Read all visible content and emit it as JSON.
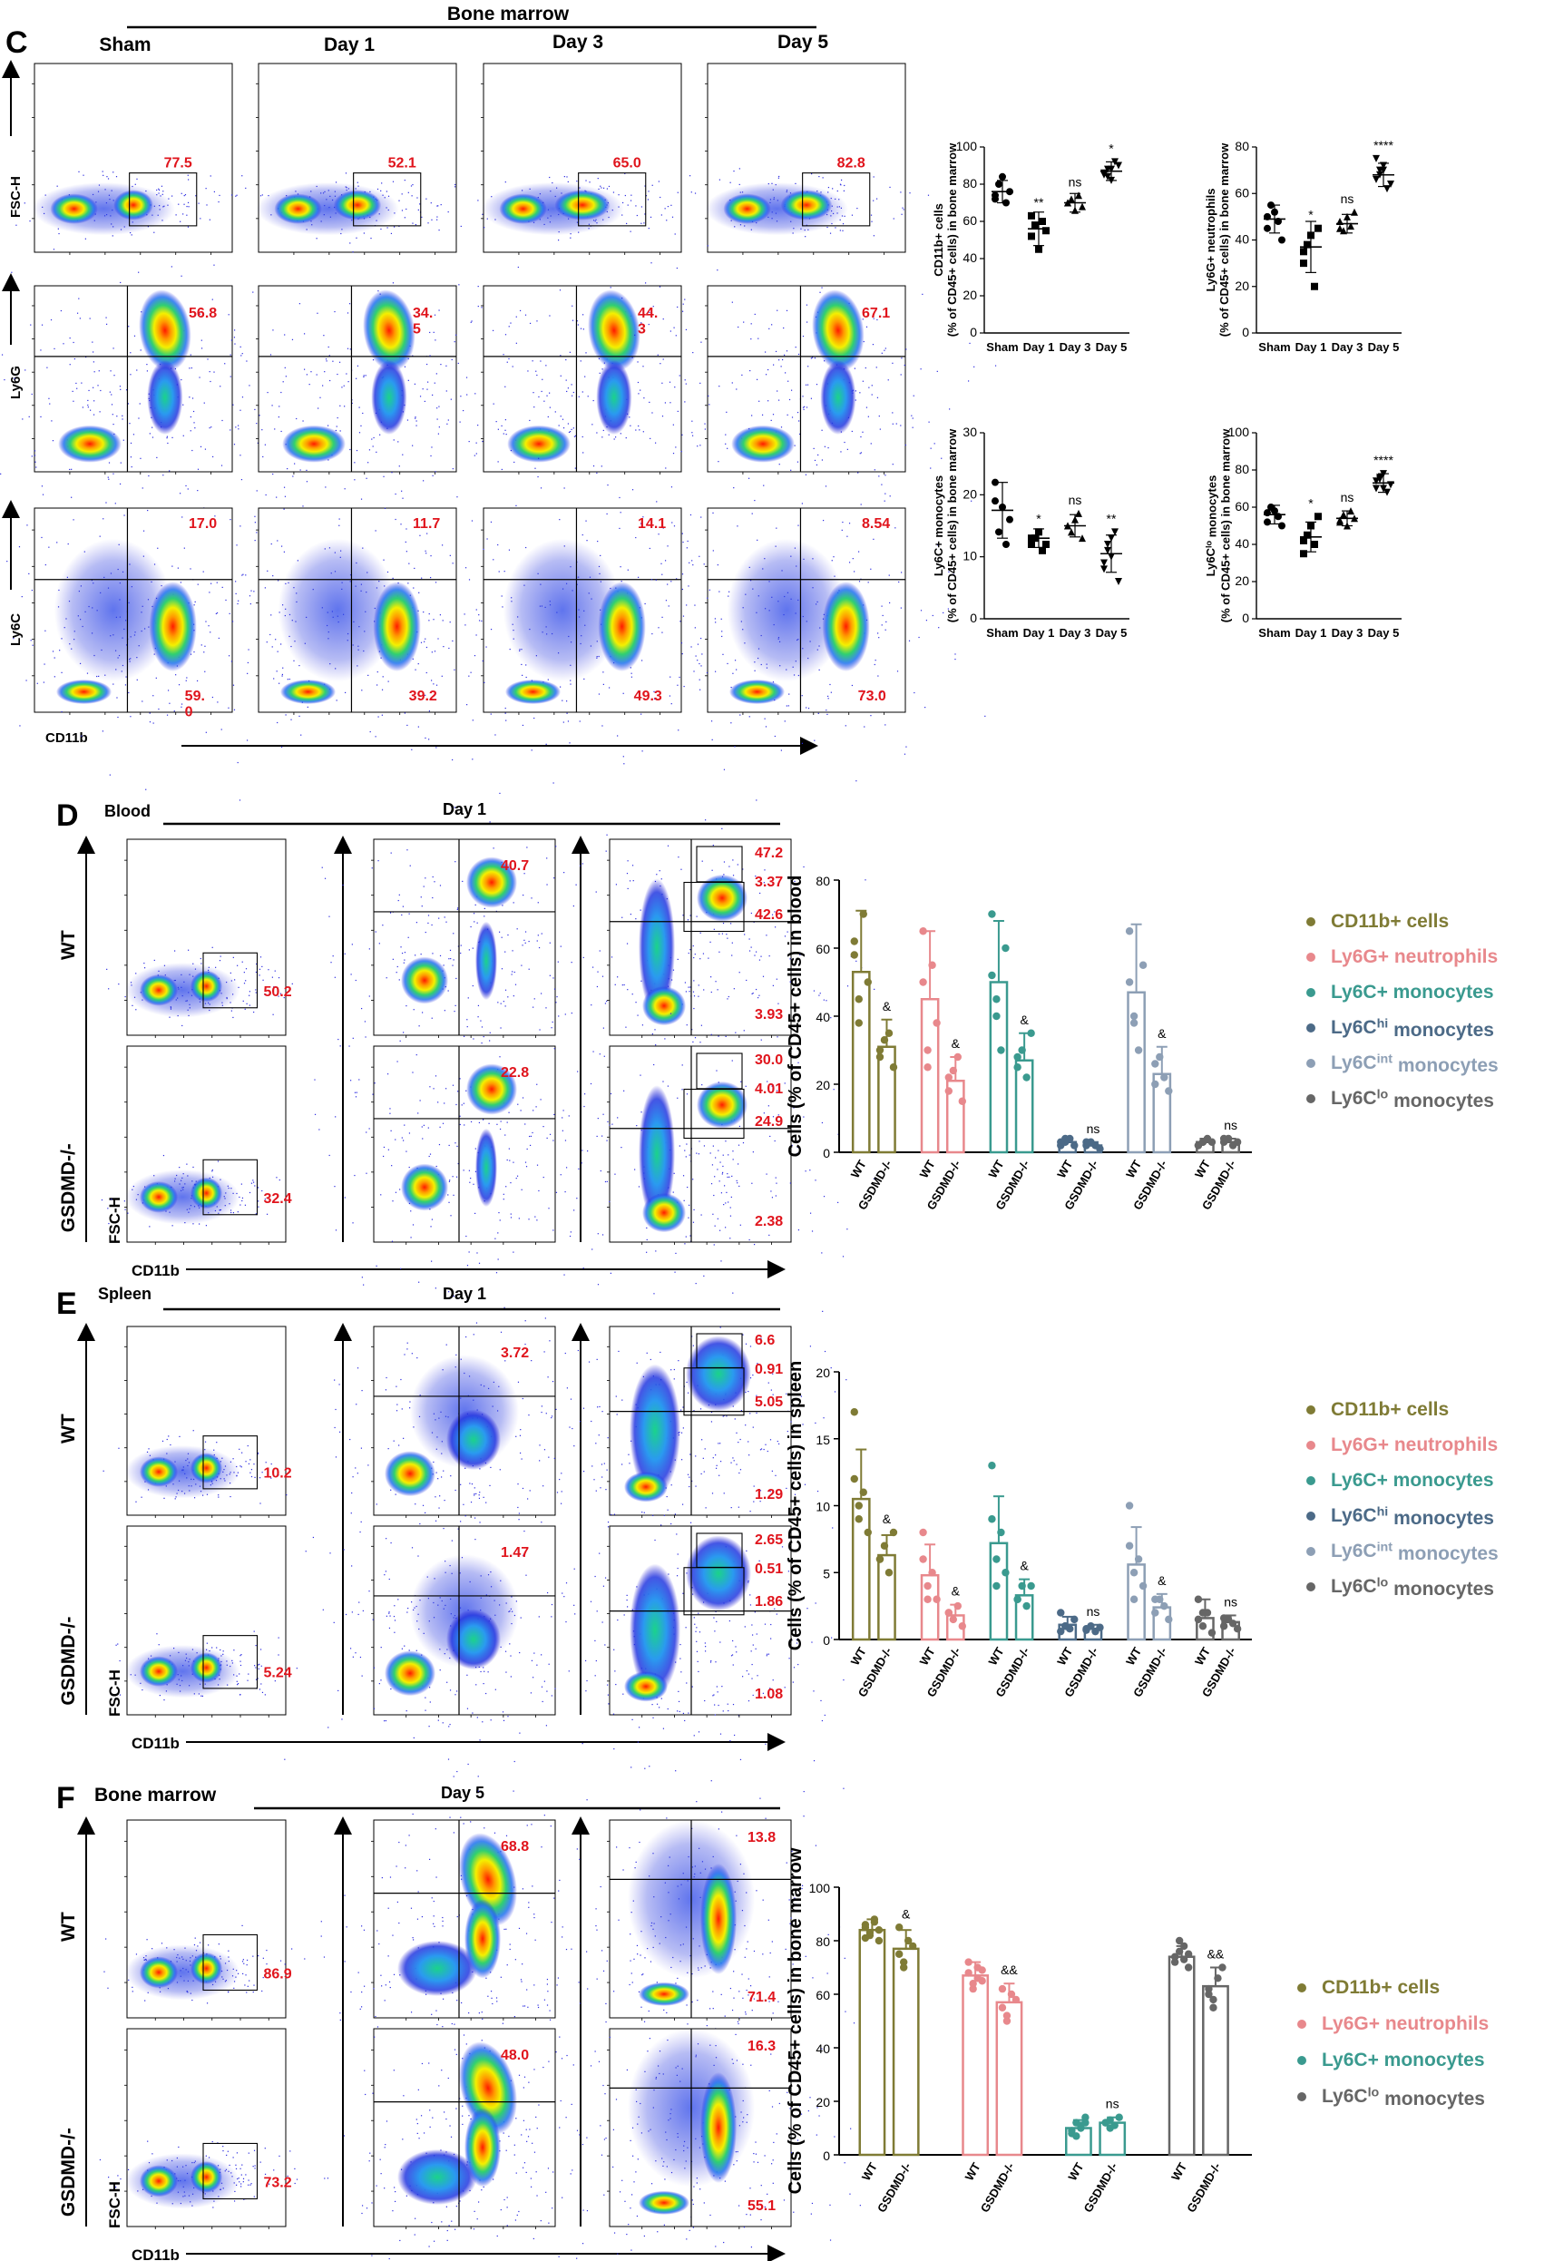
{
  "panel_C": {
    "letter": "C",
    "group": "Bone marrow",
    "timepoints": [
      "Sham",
      "Day 1",
      "Day 3",
      "Day 5"
    ],
    "row_labels": [
      "FSC-H",
      "Ly6G",
      "Ly6C"
    ],
    "x_label": "CD11b",
    "row1_values": [
      "77.5",
      "52.1",
      "65.0",
      "82.8"
    ],
    "row2_values": [
      "56.8",
      "34.\n5",
      "44.\n3",
      "67.1"
    ],
    "row3_top": [
      "17.0",
      "11.7",
      "14.1",
      "8.54"
    ],
    "row3_bottom": [
      "59.\n0",
      "39.2",
      "49.3",
      "73.0"
    ]
  },
  "panel_D": {
    "letter": "D",
    "tissue": "Blood",
    "day": "Day 1",
    "genotypes": [
      "WT",
      "GSDMD-/-"
    ],
    "axis_labels": [
      "FSC-H",
      "Ly6G",
      "Ly6C",
      "CD11b"
    ],
    "wt_values": [
      "50.2",
      "40.7",
      "47.2",
      "3.37",
      "42.6",
      "3.93"
    ],
    "ko_values": [
      "32.4",
      "22.8",
      "30.0",
      "4.01",
      "24.9",
      "2.38"
    ]
  },
  "panel_E": {
    "letter": "E",
    "tissue": "Spleen",
    "day": "Day 1",
    "genotypes": [
      "WT",
      "GSDMD-/-"
    ],
    "axis_labels": [
      "FSC-H",
      "Ly6G",
      "Ly6C",
      "CD11b"
    ],
    "wt_values": [
      "10.2",
      "3.72",
      "6.6",
      "0.91",
      "5.05",
      "1.29"
    ],
    "ko_values": [
      "5.24",
      "1.47",
      "2.65",
      "0.51",
      "1.86",
      "1.08"
    ]
  },
  "panel_F": {
    "letter": "F",
    "tissue": "Bone marrow",
    "day": "Day 5",
    "genotypes": [
      "WT",
      "GSDMD-/-"
    ],
    "axis_labels": [
      "FSC-H",
      "Ly6G",
      "Ly6C",
      "CD11b"
    ],
    "wt_values": [
      "86.9",
      "68.8",
      "13.8",
      "71.4"
    ],
    "ko_values": [
      "73.2",
      "48.0",
      "16.3",
      "55.1"
    ]
  },
  "colors": {
    "cd11b": "#7f7b35",
    "ly6g": "#e8888c",
    "ly6c": "#3a9a8f",
    "ly6chi": "#4c6a87",
    "ly6cint": "#8d9fb5",
    "ly6clo": "#666666",
    "red_text": "#e0141c"
  },
  "chart_data": [
    {
      "id": "C1",
      "type": "scatter",
      "ylabel": "CD11b+ cells\n(% of CD45+ cells) in bone marrow",
      "categories": [
        "Sham",
        "Day 1",
        "Day 3",
        "Day 5"
      ],
      "ylim": [
        0,
        100
      ],
      "yticks": [
        0,
        20,
        40,
        60,
        80,
        100
      ],
      "means": [
        76,
        56,
        70,
        87
      ],
      "sd": [
        6,
        9,
        5,
        5
      ],
      "points": [
        [
          72,
          80,
          84,
          70,
          76,
          74
        ],
        [
          52,
          58,
          45,
          60,
          55,
          63
        ],
        [
          70,
          72,
          66,
          74,
          68,
          70
        ],
        [
          86,
          88,
          82,
          92,
          90,
          85,
          84,
          88
        ]
      ],
      "markers": [
        "circle",
        "square",
        "triangle-up",
        "triangle-down"
      ],
      "significance": [
        "",
        "**",
        "ns",
        "*"
      ]
    },
    {
      "id": "C2",
      "type": "scatter",
      "ylabel": "Ly6G+ neutrophils\n(% of CD45+ cells) in bone marrow",
      "categories": [
        "Sham",
        "Day 1",
        "Day 3",
        "Day 5"
      ],
      "ylim": [
        0,
        80
      ],
      "yticks": [
        0,
        20,
        40,
        60,
        80
      ],
      "means": [
        49,
        37,
        47,
        68
      ],
      "sd": [
        6,
        11,
        4,
        5
      ],
      "points": [
        [
          45,
          55,
          52,
          48,
          40,
          50
        ],
        [
          30,
          38,
          42,
          20,
          45,
          35
        ],
        [
          48,
          44,
          50,
          46,
          52,
          45
        ],
        [
          66,
          70,
          72,
          62,
          64,
          75,
          68,
          70
        ]
      ],
      "markers": [
        "circle",
        "square",
        "triangle-up",
        "triangle-down"
      ],
      "significance": [
        "",
        "*",
        "ns",
        "****"
      ]
    },
    {
      "id": "C3",
      "type": "scatter",
      "ylabel": "Ly6C+ monocytes\n(% of CD45+ cells) in bone marrow",
      "categories": [
        "Sham",
        "Day 1",
        "Day 3",
        "Day 5"
      ],
      "ylim": [
        0,
        30
      ],
      "yticks": [
        0,
        10,
        20,
        30
      ],
      "means": [
        17.5,
        13,
        15,
        10.5
      ],
      "sd": [
        4.5,
        1.5,
        1.8,
        3
      ],
      "points": [
        [
          22,
          14,
          18,
          12,
          16,
          19
        ],
        [
          12,
          13,
          14,
          11,
          12,
          13
        ],
        [
          15,
          14,
          16,
          17,
          13,
          15
        ],
        [
          8,
          12,
          10,
          14,
          6,
          9,
          11,
          13
        ]
      ],
      "markers": [
        "circle",
        "square",
        "triangle-up",
        "triangle-down"
      ],
      "significance": [
        "",
        "*",
        "ns",
        "**"
      ]
    },
    {
      "id": "C4",
      "type": "scatter",
      "ylabel": "Ly6C^lo monocytes\n(% of CD45+ cells) in bone marrow",
      "categories": [
        "Sham",
        "Day 1",
        "Day 3",
        "Day 5"
      ],
      "ylim": [
        0,
        100
      ],
      "yticks": [
        0,
        20,
        40,
        60,
        80,
        100
      ],
      "means": [
        56,
        44,
        54,
        73
      ],
      "sd": [
        5,
        8,
        4,
        5
      ],
      "points": [
        [
          52,
          60,
          58,
          55,
          50,
          57
        ],
        [
          35,
          45,
          50,
          40,
          55,
          42
        ],
        [
          52,
          56,
          50,
          58,
          54,
          53
        ],
        [
          70,
          75,
          78,
          68,
          72,
          74,
          76,
          70
        ]
      ],
      "markers": [
        "circle",
        "square",
        "triangle-up",
        "triangle-down"
      ],
      "significance": [
        "",
        "*",
        "ns",
        "****"
      ]
    },
    {
      "id": "D",
      "type": "bar",
      "ylabel": "Cells (% of CD45+ cells) in blood",
      "genotypes": [
        "WT",
        "GSDMD-/-"
      ],
      "ylim": [
        0,
        80
      ],
      "yticks": [
        0,
        20,
        40,
        60,
        80
      ],
      "series": [
        {
          "name": "CD11b+ cells",
          "wt": 53,
          "ko": 31,
          "wt_sd": 18,
          "ko_sd": 8,
          "wt_pts": [
            62,
            45,
            70,
            50,
            58,
            38
          ],
          "ko_pts": [
            28,
            33,
            35,
            25,
            30
          ],
          "sig": "&"
        },
        {
          "name": "Ly6G+ neutrophils",
          "wt": 45,
          "ko": 21,
          "wt_sd": 20,
          "ko_sd": 7,
          "wt_pts": [
            65,
            30,
            55,
            38,
            50,
            25
          ],
          "ko_pts": [
            18,
            24,
            28,
            15,
            22
          ],
          "sig": "&"
        },
        {
          "name": "Ly6C+ monocytes",
          "wt": 50,
          "ko": 27,
          "wt_sd": 18,
          "ko_sd": 8,
          "wt_pts": [
            70,
            45,
            30,
            60,
            52,
            40
          ],
          "ko_pts": [
            25,
            30,
            22,
            35,
            28
          ],
          "sig": "&"
        },
        {
          "name": "Ly6C^hi monocytes",
          "wt": 3,
          "ko": 2,
          "wt_sd": 1,
          "ko_sd": 1,
          "wt_pts": [
            2,
            3,
            4,
            2,
            3,
            4
          ],
          "ko_pts": [
            2,
            3,
            2,
            1,
            3
          ],
          "sig": "ns"
        },
        {
          "name": "Ly6C^int monocytes",
          "wt": 47,
          "ko": 23,
          "wt_sd": 20,
          "ko_sd": 8,
          "wt_pts": [
            65,
            40,
            30,
            55,
            50,
            38
          ],
          "ko_pts": [
            20,
            28,
            22,
            18,
            26
          ],
          "sig": "&"
        },
        {
          "name": "Ly6C^lo monocytes",
          "wt": 3,
          "ko": 3,
          "wt_sd": 1,
          "ko_sd": 1,
          "wt_pts": [
            2,
            3,
            4,
            3,
            2,
            3
          ],
          "ko_pts": [
            3,
            4,
            2,
            3,
            4
          ],
          "sig": "ns"
        }
      ]
    },
    {
      "id": "E",
      "type": "bar",
      "ylabel": "Cells (% of CD45+ cells) in spleen",
      "genotypes": [
        "WT",
        "GSDMD-/-"
      ],
      "ylim": [
        0,
        20
      ],
      "yticks": [
        0,
        5,
        10,
        15,
        20
      ],
      "series": [
        {
          "name": "CD11b+ cells",
          "wt": 10.5,
          "ko": 6.3,
          "wt_sd": 3.7,
          "ko_sd": 1.5,
          "wt_pts": [
            17,
            9,
            11,
            8,
            12,
            10
          ],
          "ko_pts": [
            6,
            7,
            5,
            8,
            6
          ],
          "sig": "&"
        },
        {
          "name": "Ly6G+ neutrophils",
          "wt": 4.8,
          "ko": 1.8,
          "wt_sd": 2.3,
          "ko_sd": 0.8,
          "wt_pts": [
            8,
            4,
            5,
            3,
            6,
            3
          ],
          "ko_pts": [
            2,
            1.5,
            2.5,
            1,
            2
          ],
          "sig": "&"
        },
        {
          "name": "Ly6C+ monocytes",
          "wt": 7.2,
          "ko": 3.3,
          "wt_sd": 3.5,
          "ko_sd": 1.2,
          "wt_pts": [
            13,
            6,
            8,
            5,
            9,
            4
          ],
          "ko_pts": [
            3,
            4,
            2.5,
            4,
            3
          ],
          "sig": "&"
        },
        {
          "name": "Ly6C^hi monocytes",
          "wt": 1.1,
          "ko": 0.8,
          "wt_sd": 0.6,
          "ko_sd": 0.3,
          "wt_pts": [
            2,
            1,
            0.8,
            1.5,
            0.6,
            1
          ],
          "ko_pts": [
            0.8,
            1,
            0.6,
            0.9,
            0.7
          ],
          "sig": "ns"
        },
        {
          "name": "Ly6C^int monocytes",
          "wt": 5.6,
          "ko": 2.4,
          "wt_sd": 2.8,
          "ko_sd": 1,
          "wt_pts": [
            10,
            5,
            6,
            4,
            7,
            3
          ],
          "ko_pts": [
            2,
            3,
            2.5,
            1.5,
            3
          ],
          "sig": "&"
        },
        {
          "name": "Ly6C^lo monocytes",
          "wt": 1.6,
          "ko": 1.3,
          "wt_sd": 1.4,
          "ko_sd": 0.5,
          "wt_pts": [
            3,
            1,
            2,
            0.5,
            1.5,
            2
          ],
          "ko_pts": [
            1,
            1.5,
            1.2,
            0.8,
            1.6
          ],
          "sig": "ns"
        }
      ]
    },
    {
      "id": "F",
      "type": "bar",
      "ylabel": "Cells (% of CD45+ cells) in bone marrow",
      "genotypes": [
        "WT",
        "GSDMD-/-"
      ],
      "ylim": [
        0,
        100
      ],
      "yticks": [
        0,
        20,
        40,
        60,
        80,
        100
      ],
      "series": [
        {
          "name": "CD11b+ cells",
          "wt": 84,
          "ko": 77,
          "wt_sd": 4,
          "ko_sd": 7,
          "wt_pts": [
            86,
            82,
            88,
            80,
            85,
            83,
            87,
            84,
            81
          ],
          "ko_pts": [
            75,
            72,
            80,
            78,
            85,
            70
          ],
          "sig": "&"
        },
        {
          "name": "Ly6G+ neutrophils",
          "wt": 67,
          "ko": 57,
          "wt_sd": 5,
          "ko_sd": 7,
          "wt_pts": [
            68,
            62,
            70,
            65,
            72,
            64,
            66,
            69
          ],
          "ko_pts": [
            55,
            50,
            60,
            58,
            62,
            52
          ],
          "sig": "&&"
        },
        {
          "name": "Ly6C+ monocytes",
          "wt": 10,
          "ko": 12,
          "wt_sd": 3,
          "ko_sd": 2,
          "wt_pts": [
            8,
            12,
            10,
            14,
            9,
            7,
            11,
            12
          ],
          "ko_pts": [
            12,
            13,
            11,
            14,
            12,
            10
          ],
          "sig": "ns"
        },
        {
          "name": "Ly6C^lo monocytes",
          "wt": 74,
          "ko": 63,
          "wt_sd": 4,
          "ko_sd": 7,
          "wt_pts": [
            72,
            76,
            78,
            70,
            74,
            80,
            73,
            75
          ],
          "ko_pts": [
            60,
            58,
            66,
            70,
            62,
            55
          ],
          "sig": "&&"
        }
      ]
    }
  ]
}
